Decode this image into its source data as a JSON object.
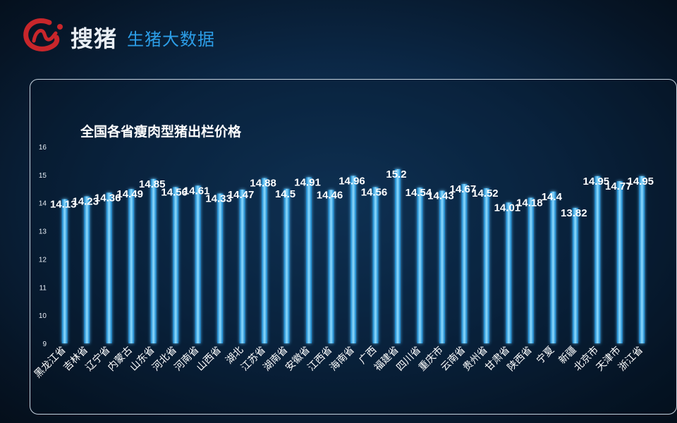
{
  "header": {
    "brand_name": "搜猪",
    "slogan": "生猪大数据"
  },
  "colors": {
    "bar": "#1aa0e8",
    "bar_highlight": "#8fdcff",
    "brand_red": "#c8262b",
    "slogan_blue": "#2c9ee8"
  },
  "chart_data": {
    "type": "bar",
    "title": "全国各省瘦肉型猪出栏价格",
    "xlabel": "",
    "ylabel": "",
    "ylim": [
      9,
      16
    ],
    "yticks": [
      9,
      10,
      11,
      12,
      13,
      14,
      15,
      16
    ],
    "categories": [
      "黑龙江省",
      "吉林省",
      "辽宁省",
      "内蒙古",
      "山东省",
      "河北省",
      "河南省",
      "山西省",
      "湖北",
      "江苏省",
      "湖南省",
      "安徽省",
      "江西省",
      "海南省",
      "广西",
      "福建省",
      "四川省",
      "重庆市",
      "云南省",
      "贵州省",
      "甘肃省",
      "陕西省",
      "宁夏",
      "新疆",
      "北京市",
      "天津市",
      "浙江省"
    ],
    "values": [
      14.13,
      14.23,
      14.36,
      14.49,
      14.85,
      14.56,
      14.61,
      14.33,
      14.47,
      14.88,
      14.5,
      14.91,
      14.46,
      14.96,
      14.56,
      15.2,
      14.54,
      14.43,
      14.67,
      14.52,
      14.01,
      14.18,
      14.4,
      13.82,
      14.95,
      14.77,
      14.95
    ],
    "grid": false,
    "legend": "none"
  }
}
